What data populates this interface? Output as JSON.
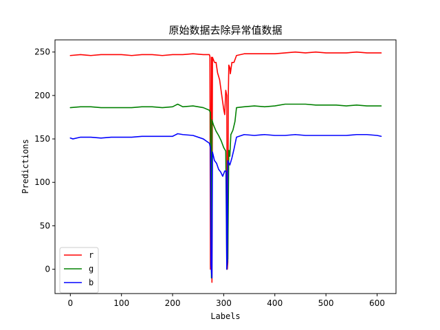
{
  "chart_data": {
    "type": "line",
    "title": "原始数据去除异常值数据",
    "xlabel": "Labels",
    "ylabel": "Predictions",
    "xlim": [
      -30,
      637
    ],
    "ylim": [
      -28,
      264
    ],
    "xticks": [
      0,
      100,
      200,
      300,
      400,
      500,
      600
    ],
    "yticks": [
      0,
      50,
      100,
      150,
      200,
      250
    ],
    "grid": false,
    "legend_position": "lower-left",
    "series": [
      {
        "name": "r",
        "color": "#ff0000",
        "points": [
          [
            0,
            246
          ],
          [
            20,
            247
          ],
          [
            40,
            246
          ],
          [
            60,
            247
          ],
          [
            80,
            247
          ],
          [
            100,
            247
          ],
          [
            120,
            246
          ],
          [
            140,
            247
          ],
          [
            160,
            247
          ],
          [
            180,
            246
          ],
          [
            200,
            247
          ],
          [
            220,
            247
          ],
          [
            240,
            248
          ],
          [
            260,
            247
          ],
          [
            272,
            247
          ],
          [
            273,
            245
          ],
          [
            274,
            0
          ],
          [
            276,
            244
          ],
          [
            277,
            -15
          ],
          [
            278,
            244
          ],
          [
            282,
            238
          ],
          [
            285,
            238
          ],
          [
            288,
            226
          ],
          [
            292,
            218
          ],
          [
            296,
            201
          ],
          [
            300,
            184
          ],
          [
            302,
            178
          ],
          [
            304,
            206
          ],
          [
            306,
            200
          ],
          [
            307,
            0
          ],
          [
            308,
            8
          ],
          [
            309,
            200
          ],
          [
            310,
            235
          ],
          [
            312,
            232
          ],
          [
            313,
            225
          ],
          [
            316,
            238
          ],
          [
            320,
            238
          ],
          [
            325,
            246
          ],
          [
            340,
            248
          ],
          [
            360,
            248
          ],
          [
            380,
            248
          ],
          [
            400,
            248
          ],
          [
            420,
            249
          ],
          [
            440,
            250
          ],
          [
            460,
            249
          ],
          [
            480,
            250
          ],
          [
            500,
            249
          ],
          [
            520,
            249
          ],
          [
            540,
            249
          ],
          [
            560,
            250
          ],
          [
            580,
            249
          ],
          [
            600,
            249
          ],
          [
            608,
            249
          ]
        ]
      },
      {
        "name": "g",
        "color": "#008000",
        "points": [
          [
            0,
            186
          ],
          [
            20,
            187
          ],
          [
            40,
            187
          ],
          [
            60,
            186
          ],
          [
            80,
            186
          ],
          [
            100,
            186
          ],
          [
            120,
            186
          ],
          [
            140,
            187
          ],
          [
            160,
            187
          ],
          [
            180,
            186
          ],
          [
            200,
            187
          ],
          [
            210,
            190
          ],
          [
            220,
            187
          ],
          [
            240,
            188
          ],
          [
            260,
            186
          ],
          [
            272,
            183
          ],
          [
            274,
            180
          ],
          [
            276,
            -10
          ],
          [
            277,
            172
          ],
          [
            280,
            166
          ],
          [
            285,
            159
          ],
          [
            290,
            154
          ],
          [
            295,
            148
          ],
          [
            300,
            140
          ],
          [
            304,
            136
          ],
          [
            306,
            0
          ],
          [
            308,
            12
          ],
          [
            310,
            137
          ],
          [
            312,
            130
          ],
          [
            314,
            155
          ],
          [
            318,
            160
          ],
          [
            322,
            170
          ],
          [
            325,
            186
          ],
          [
            340,
            187
          ],
          [
            360,
            188
          ],
          [
            380,
            187
          ],
          [
            400,
            188
          ],
          [
            420,
            190
          ],
          [
            440,
            190
          ],
          [
            460,
            190
          ],
          [
            480,
            189
          ],
          [
            500,
            189
          ],
          [
            520,
            189
          ],
          [
            540,
            188
          ],
          [
            560,
            189
          ],
          [
            580,
            188
          ],
          [
            600,
            188
          ],
          [
            608,
            188
          ]
        ]
      },
      {
        "name": "b",
        "color": "#0000ff",
        "points": [
          [
            0,
            151
          ],
          [
            5,
            150
          ],
          [
            20,
            152
          ],
          [
            40,
            152
          ],
          [
            60,
            151
          ],
          [
            80,
            152
          ],
          [
            100,
            152
          ],
          [
            120,
            152
          ],
          [
            140,
            153
          ],
          [
            160,
            153
          ],
          [
            180,
            153
          ],
          [
            200,
            153
          ],
          [
            210,
            156
          ],
          [
            220,
            155
          ],
          [
            240,
            154
          ],
          [
            260,
            150
          ],
          [
            272,
            145
          ],
          [
            274,
            140
          ],
          [
            275,
            5
          ],
          [
            277,
            -10
          ],
          [
            278,
            135
          ],
          [
            282,
            125
          ],
          [
            286,
            122
          ],
          [
            290,
            115
          ],
          [
            294,
            112
          ],
          [
            298,
            107
          ],
          [
            302,
            113
          ],
          [
            305,
            113
          ],
          [
            306,
            0
          ],
          [
            307,
            8
          ],
          [
            308,
            125
          ],
          [
            312,
            120
          ],
          [
            316,
            128
          ],
          [
            320,
            138
          ],
          [
            325,
            152
          ],
          [
            340,
            155
          ],
          [
            360,
            154
          ],
          [
            380,
            155
          ],
          [
            400,
            154
          ],
          [
            420,
            154
          ],
          [
            440,
            155
          ],
          [
            460,
            154
          ],
          [
            480,
            154
          ],
          [
            500,
            154
          ],
          [
            520,
            154
          ],
          [
            540,
            154
          ],
          [
            560,
            155
          ],
          [
            580,
            155
          ],
          [
            600,
            154
          ],
          [
            608,
            153
          ]
        ]
      }
    ]
  }
}
